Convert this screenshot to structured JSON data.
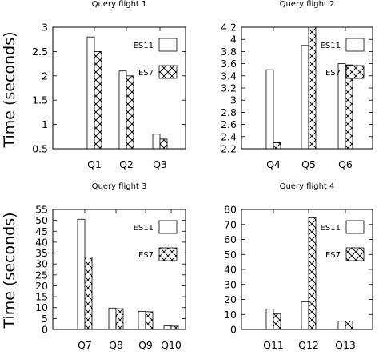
{
  "figure": {
    "ylabel": "Time (seconds)"
  },
  "chart_data": [
    {
      "type": "bar",
      "title": "Query flight 1",
      "xlabel": "",
      "ylabel": "Time (seconds)",
      "categories": [
        "Q1",
        "Q2",
        "Q3"
      ],
      "ylim": [
        0.5,
        3
      ],
      "yticks": [
        0.5,
        1,
        1.5,
        2,
        2.5,
        3
      ],
      "yticklabels": [
        "0.5",
        "1",
        "1.5",
        "2",
        "2.5",
        "3"
      ],
      "legend_position": "right",
      "series": [
        {
          "name": "ES11",
          "pattern": "open",
          "color": "#ffffff",
          "values": [
            2.8,
            2.1,
            0.8
          ]
        },
        {
          "name": "ES7",
          "pattern": "crosshatch",
          "color": "#ffffff",
          "values": [
            2.5,
            2.0,
            0.7
          ]
        }
      ]
    },
    {
      "type": "bar",
      "title": "Query flight 2",
      "xlabel": "",
      "ylabel": "",
      "categories": [
        "Q4",
        "Q5",
        "Q6"
      ],
      "ylim": [
        2.2,
        4.2
      ],
      "yticks": [
        2.2,
        2.4,
        2.6,
        2.8,
        3.0,
        3.2,
        3.4,
        3.6,
        3.8,
        4.0,
        4.2
      ],
      "yticklabels": [
        "2.2",
        "2.4",
        "2.6",
        "2.8",
        "3",
        "3.2",
        "3.4",
        "3.6",
        "3.8",
        "4",
        "4.2"
      ],
      "legend_position": "right",
      "series": [
        {
          "name": "ES11",
          "pattern": "open",
          "color": "#ffffff",
          "values": [
            3.5,
            3.9,
            3.6
          ]
        },
        {
          "name": "ES7",
          "pattern": "crosshatch",
          "color": "#ffffff",
          "values": [
            2.3,
            4.2,
            3.58
          ]
        }
      ]
    },
    {
      "type": "bar",
      "title": "Query flight 3",
      "xlabel": "",
      "ylabel": "Time (seconds)",
      "categories": [
        "Q7",
        "Q8",
        "Q9",
        "Q10"
      ],
      "ylim": [
        0,
        55
      ],
      "yticks": [
        0,
        5,
        10,
        15,
        20,
        25,
        30,
        35,
        40,
        45,
        50,
        55
      ],
      "yticklabels": [
        "0",
        "5",
        "10",
        "15",
        "20",
        "25",
        "30",
        "35",
        "40",
        "45",
        "50",
        "55"
      ],
      "legend_position": "right",
      "series": [
        {
          "name": "ES11",
          "pattern": "open",
          "color": "#ffffff",
          "values": [
            50.5,
            9.8,
            8.3,
            1.6
          ]
        },
        {
          "name": "ES7",
          "pattern": "crosshatch",
          "color": "#ffffff",
          "values": [
            33.2,
            9.5,
            8.1,
            1.5
          ]
        }
      ]
    },
    {
      "type": "bar",
      "title": "Query flight 4",
      "xlabel": "",
      "ylabel": "",
      "categories": [
        "Q11",
        "Q12",
        "Q13"
      ],
      "ylim": [
        0,
        80
      ],
      "yticks": [
        0,
        10,
        20,
        30,
        40,
        50,
        60,
        70,
        80
      ],
      "yticklabels": [
        "0",
        "10",
        "20",
        "30",
        "40",
        "50",
        "60",
        "70",
        "80"
      ],
      "legend_position": "right",
      "series": [
        {
          "name": "ES11",
          "pattern": "open",
          "color": "#ffffff",
          "values": [
            13.5,
            18.5,
            5.5
          ]
        },
        {
          "name": "ES7",
          "pattern": "crosshatch",
          "color": "#ffffff",
          "values": [
            10.3,
            74.5,
            5.6
          ]
        }
      ]
    }
  ]
}
